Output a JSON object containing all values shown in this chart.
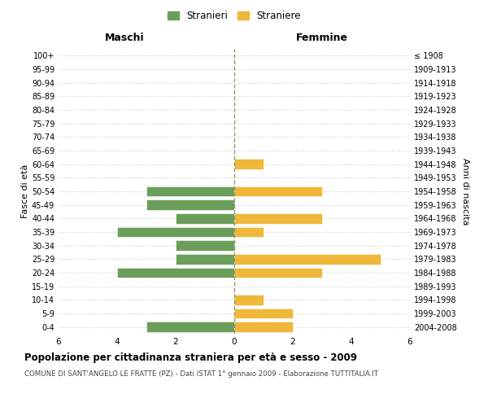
{
  "age_groups": [
    "0-4",
    "5-9",
    "10-14",
    "15-19",
    "20-24",
    "25-29",
    "30-34",
    "35-39",
    "40-44",
    "45-49",
    "50-54",
    "55-59",
    "60-64",
    "65-69",
    "70-74",
    "75-79",
    "80-84",
    "85-89",
    "90-94",
    "95-99",
    "100+"
  ],
  "birth_years": [
    "2004-2008",
    "1999-2003",
    "1994-1998",
    "1989-1993",
    "1984-1988",
    "1979-1983",
    "1974-1978",
    "1969-1973",
    "1964-1968",
    "1959-1963",
    "1954-1958",
    "1949-1953",
    "1944-1948",
    "1939-1943",
    "1934-1938",
    "1929-1933",
    "1924-1928",
    "1919-1923",
    "1914-1918",
    "1909-1913",
    "≤ 1908"
  ],
  "males": [
    3,
    0,
    0,
    0,
    4,
    2,
    2,
    4,
    2,
    3,
    3,
    0,
    0,
    0,
    0,
    0,
    0,
    0,
    0,
    0,
    0
  ],
  "females": [
    2,
    2,
    1,
    0,
    3,
    5,
    0,
    1,
    3,
    0,
    3,
    0,
    1,
    0,
    0,
    0,
    0,
    0,
    0,
    0,
    0
  ],
  "male_color": "#6a9e5a",
  "female_color": "#f0b83a",
  "male_label": "Stranieri",
  "female_label": "Straniere",
  "title": "Popolazione per cittadinanza straniera per età e sesso - 2009",
  "subtitle": "COMUNE DI SANT'ANGELO LE FRATTE (PZ) - Dati ISTAT 1° gennaio 2009 - Elaborazione TUTTITALIA.IT",
  "xlabel_left": "Maschi",
  "xlabel_right": "Femmine",
  "ylabel_left": "Fasce di età",
  "ylabel_right": "Anni di nascita",
  "xlim": 6,
  "background_color": "#ffffff",
  "grid_color": "#cccccc"
}
